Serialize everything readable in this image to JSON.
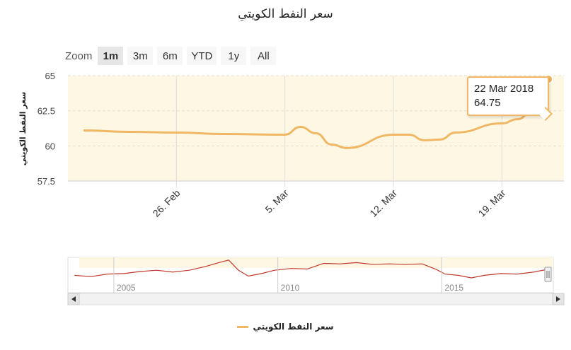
{
  "title": "سعر النفط الكويتي",
  "range_selector": {
    "zoom_label": "Zoom",
    "buttons": [
      "1m",
      "3m",
      "6m",
      "YTD",
      "1y",
      "All"
    ],
    "active": "1m"
  },
  "tooltip": {
    "date": "22 Mar 2018",
    "value": "64.75"
  },
  "legend": {
    "label": "سعر النفط الكويتي"
  },
  "colors": {
    "series": "#f0b764",
    "navigator_series": "#c0392b",
    "plot_band": "#fdf7e4"
  },
  "chart_data": {
    "type": "line",
    "title": "سعر النفط الكويتي",
    "ylabel": "سعر النفط الكويتي",
    "ylim": [
      57.5,
      65
    ],
    "y_ticks": [
      "57.5",
      "60",
      "62.5",
      "65"
    ],
    "x_ticks": [
      "26. Feb",
      "5. Mar",
      "12. Mar",
      "19. Mar"
    ],
    "grid": true,
    "legend_position": "bottom",
    "series": [
      {
        "name": "سعر النفط الكويتي",
        "points": [
          {
            "x": "2018-02-20",
            "y": 61.1
          },
          {
            "x": "2018-02-23",
            "y": 61.0
          },
          {
            "x": "2018-02-26",
            "y": 60.95
          },
          {
            "x": "2018-03-01",
            "y": 60.85
          },
          {
            "x": "2018-03-05",
            "y": 60.8
          },
          {
            "x": "2018-03-06",
            "y": 61.35
          },
          {
            "x": "2018-03-07",
            "y": 60.9
          },
          {
            "x": "2018-03-08",
            "y": 60.1
          },
          {
            "x": "2018-03-09",
            "y": 59.85
          },
          {
            "x": "2018-03-12",
            "y": 60.8
          },
          {
            "x": "2018-03-13",
            "y": 60.8
          },
          {
            "x": "2018-03-14",
            "y": 60.4
          },
          {
            "x": "2018-03-15",
            "y": 60.45
          },
          {
            "x": "2018-03-16",
            "y": 60.95
          },
          {
            "x": "2018-03-19",
            "y": 61.6
          },
          {
            "x": "2018-03-20",
            "y": 61.9
          },
          {
            "x": "2018-03-21",
            "y": 62.5
          },
          {
            "x": "2018-03-22",
            "y": 64.75
          }
        ]
      }
    ],
    "navigator": {
      "x_ticks": [
        "2005",
        "2010",
        "2015"
      ],
      "series": [
        {
          "x": 2003.8,
          "y": 0.35
        },
        {
          "x": 2004.3,
          "y": 0.3
        },
        {
          "x": 2004.8,
          "y": 0.4
        },
        {
          "x": 2005.3,
          "y": 0.42
        },
        {
          "x": 2005.8,
          "y": 0.5
        },
        {
          "x": 2006.3,
          "y": 0.55
        },
        {
          "x": 2006.8,
          "y": 0.48
        },
        {
          "x": 2007.3,
          "y": 0.55
        },
        {
          "x": 2007.8,
          "y": 0.7
        },
        {
          "x": 2008.2,
          "y": 0.85
        },
        {
          "x": 2008.5,
          "y": 0.95
        },
        {
          "x": 2008.8,
          "y": 0.55
        },
        {
          "x": 2009.1,
          "y": 0.32
        },
        {
          "x": 2009.5,
          "y": 0.42
        },
        {
          "x": 2009.9,
          "y": 0.55
        },
        {
          "x": 2010.4,
          "y": 0.62
        },
        {
          "x": 2010.9,
          "y": 0.6
        },
        {
          "x": 2011.4,
          "y": 0.82
        },
        {
          "x": 2011.9,
          "y": 0.8
        },
        {
          "x": 2012.4,
          "y": 0.85
        },
        {
          "x": 2012.9,
          "y": 0.78
        },
        {
          "x": 2013.4,
          "y": 0.8
        },
        {
          "x": 2013.9,
          "y": 0.78
        },
        {
          "x": 2014.4,
          "y": 0.8
        },
        {
          "x": 2014.8,
          "y": 0.6
        },
        {
          "x": 2015.1,
          "y": 0.4
        },
        {
          "x": 2015.5,
          "y": 0.35
        },
        {
          "x": 2015.9,
          "y": 0.25
        },
        {
          "x": 2016.3,
          "y": 0.35
        },
        {
          "x": 2016.8,
          "y": 0.42
        },
        {
          "x": 2017.3,
          "y": 0.4
        },
        {
          "x": 2017.8,
          "y": 0.48
        },
        {
          "x": 2018.2,
          "y": 0.58
        }
      ]
    }
  }
}
